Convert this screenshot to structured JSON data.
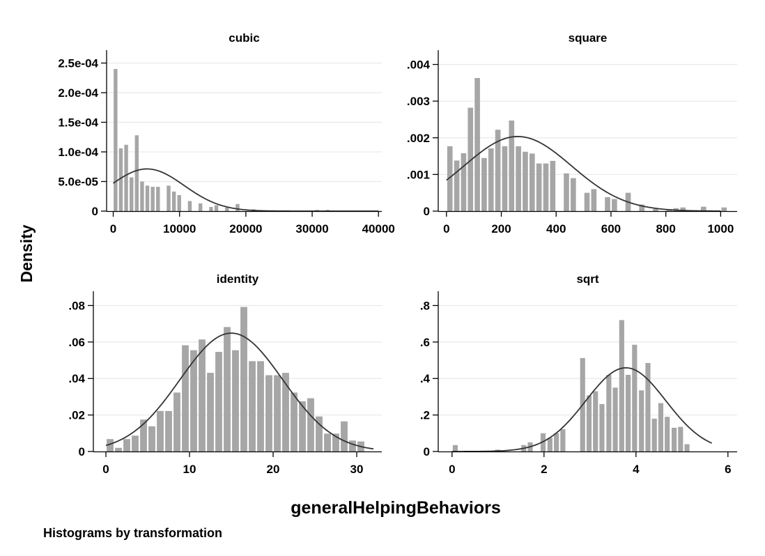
{
  "figure": {
    "ylabel": "Density",
    "xlabel": "generalHelpingBehaviors",
    "note": "Histograms by transformation",
    "colors": {
      "bar": "#a6a6a6",
      "curve": "#333333",
      "grid": "#e9e9e9",
      "axis": "#000000",
      "background": "#ffffff"
    }
  },
  "chart_data": [
    {
      "type": "bar",
      "title": "cubic",
      "xticks": [
        0,
        10000,
        20000,
        30000,
        40000
      ],
      "xtick_labels": [
        "0",
        "10000",
        "20000",
        "30000",
        "40000"
      ],
      "yticks": [
        0,
        5e-05,
        0.0001,
        0.00015,
        0.0002,
        0.00025
      ],
      "ytick_labels": [
        "0",
        "5.0e-05",
        "1.0e-04",
        "1.5e-04",
        "2.0e-04",
        "2.5e-04"
      ],
      "xlim": [
        -1000,
        40500
      ],
      "ylim": [
        0,
        0.00026
      ],
      "bin_width": 800,
      "bins": [
        [
          350,
          0.00024
        ],
        [
          1150,
          0.000106
        ],
        [
          1950,
          0.000112
        ],
        [
          2750,
          5.7e-05
        ],
        [
          3550,
          0.000128
        ],
        [
          4350,
          5e-05
        ],
        [
          5150,
          4.3e-05
        ],
        [
          5950,
          4.1e-05
        ],
        [
          6750,
          4.1e-05
        ],
        [
          8350,
          4.3e-05
        ],
        [
          9150,
          3.3e-05
        ],
        [
          9950,
          2.7e-05
        ],
        [
          11550,
          1.7e-05
        ],
        [
          13150,
          1.3e-05
        ],
        [
          14750,
          7e-06
        ],
        [
          15550,
          1e-05
        ],
        [
          17150,
          6e-06
        ],
        [
          18750,
          1.2e-05
        ],
        [
          21150,
          3e-06
        ],
        [
          30750,
          2e-06
        ],
        [
          32350,
          2e-06
        ]
      ],
      "density_curve": {
        "mean": 5100,
        "sd": 5600,
        "x_range": [
          0,
          40000
        ]
      }
    },
    {
      "type": "bar",
      "title": "square",
      "xticks": [
        0,
        200,
        400,
        600,
        800,
        1000
      ],
      "xtick_labels": [
        "0",
        "200",
        "400",
        "600",
        "800",
        "1000"
      ],
      "yticks": [
        0,
        0.001,
        0.002,
        0.003,
        0.004
      ],
      "ytick_labels": [
        "0",
        ".001",
        ".002",
        ".003",
        ".004"
      ],
      "xlim": [
        -30,
        1060
      ],
      "ylim": [
        0,
        0.0042
      ],
      "bin_width": 25,
      "bins": [
        [
          12.5,
          0.00177
        ],
        [
          37.5,
          0.00138
        ],
        [
          62.5,
          0.00158
        ],
        [
          87.5,
          0.00282
        ],
        [
          112.5,
          0.00363
        ],
        [
          137.5,
          0.00145
        ],
        [
          162.5,
          0.00171
        ],
        [
          187.5,
          0.00222
        ],
        [
          212.5,
          0.00177
        ],
        [
          237.5,
          0.00247
        ],
        [
          262.5,
          0.00177
        ],
        [
          287.5,
          0.00162
        ],
        [
          312.5,
          0.00157
        ],
        [
          337.5,
          0.0013
        ],
        [
          362.5,
          0.0013
        ],
        [
          387.5,
          0.00137
        ],
        [
          437.5,
          0.00103
        ],
        [
          462.5,
          0.0009
        ],
        [
          512.5,
          0.0005
        ],
        [
          537.5,
          0.0006
        ],
        [
          587.5,
          0.00038
        ],
        [
          612.5,
          0.00033
        ],
        [
          662.5,
          0.0005
        ],
        [
          712.5,
          0.00018
        ],
        [
          762.5,
          6e-05
        ],
        [
          812.5,
          5e-05
        ],
        [
          837.5,
          8e-05
        ],
        [
          862.5,
          0.0001
        ],
        [
          937.5,
          0.00012
        ],
        [
          1012.5,
          0.0001
        ]
      ],
      "density_curve": {
        "mean": 260,
        "sd": 196,
        "x_range": [
          0,
          1000
        ]
      }
    },
    {
      "type": "bar",
      "title": "identity",
      "xticks": [
        0,
        10,
        20,
        30
      ],
      "xtick_labels": [
        "0",
        "10",
        "20",
        "30"
      ],
      "yticks": [
        0,
        0.02,
        0.04,
        0.06,
        0.08
      ],
      "ytick_labels": [
        "0",
        ".02",
        ".04",
        ".06",
        ".08"
      ],
      "xlim": [
        -1.5,
        33
      ],
      "ylim": [
        0,
        0.084
      ],
      "bin_width": 1,
      "bins": [
        [
          0.5,
          0.0068
        ],
        [
          1.5,
          0.002
        ],
        [
          2.5,
          0.0068
        ],
        [
          3.5,
          0.0087
        ],
        [
          4.5,
          0.0175
        ],
        [
          5.5,
          0.0138
        ],
        [
          6.5,
          0.0222
        ],
        [
          7.5,
          0.0222
        ],
        [
          8.5,
          0.0323
        ],
        [
          9.5,
          0.0582
        ],
        [
          10.5,
          0.0555
        ],
        [
          11.5,
          0.0614
        ],
        [
          12.5,
          0.0431
        ],
        [
          13.5,
          0.0546
        ],
        [
          14.5,
          0.0682
        ],
        [
          15.5,
          0.0555
        ],
        [
          16.5,
          0.0792
        ],
        [
          17.5,
          0.0495
        ],
        [
          18.5,
          0.0495
        ],
        [
          19.5,
          0.0418
        ],
        [
          20.5,
          0.0418
        ],
        [
          21.5,
          0.0431
        ],
        [
          22.5,
          0.0323
        ],
        [
          23.5,
          0.0275
        ],
        [
          24.5,
          0.0292
        ],
        [
          25.5,
          0.0192
        ],
        [
          26.5,
          0.0098
        ],
        [
          27.5,
          0.0098
        ],
        [
          28.5,
          0.0165
        ],
        [
          29.5,
          0.006
        ],
        [
          30.5,
          0.0055
        ]
      ],
      "density_curve": {
        "mean": 15,
        "sd": 6.15,
        "x_range": [
          0,
          32
        ]
      }
    },
    {
      "type": "bar",
      "title": "sqrt",
      "xticks": [
        0,
        2,
        4,
        6
      ],
      "xtick_labels": [
        "0",
        "2",
        "4",
        "6"
      ],
      "yticks": [
        0,
        0.2,
        0.4,
        0.6,
        0.8
      ],
      "ytick_labels": [
        "0",
        ".2",
        ".4",
        ".6",
        ".8"
      ],
      "xlim": [
        -0.3,
        6.2
      ],
      "ylim": [
        0,
        0.84
      ],
      "bin_width": 0.142,
      "bins": [
        [
          0.07,
          0.035
        ],
        [
          0.99,
          0.01
        ],
        [
          1.56,
          0.035
        ],
        [
          1.7,
          0.05
        ],
        [
          1.98,
          0.1
        ],
        [
          2.13,
          0.075
        ],
        [
          2.27,
          0.1
        ],
        [
          2.41,
          0.122
        ],
        [
          2.84,
          0.512
        ],
        [
          2.98,
          0.307
        ],
        [
          3.12,
          0.33
        ],
        [
          3.26,
          0.26
        ],
        [
          3.41,
          0.42
        ],
        [
          3.55,
          0.35
        ],
        [
          3.69,
          0.72
        ],
        [
          3.83,
          0.42
        ],
        [
          3.97,
          0.585
        ],
        [
          4.12,
          0.335
        ],
        [
          4.26,
          0.485
        ],
        [
          4.4,
          0.18
        ],
        [
          4.54,
          0.265
        ],
        [
          4.68,
          0.19
        ],
        [
          4.83,
          0.13
        ],
        [
          4.97,
          0.135
        ],
        [
          5.11,
          0.04
        ]
      ],
      "density_curve": {
        "mean": 3.78,
        "sd": 0.87,
        "x_range": [
          0,
          5.65
        ]
      }
    }
  ]
}
